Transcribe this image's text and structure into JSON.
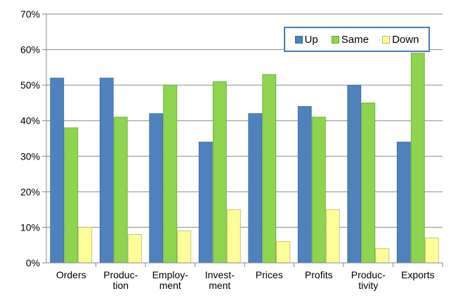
{
  "chart_data": {
    "type": "bar",
    "categories": [
      "Orders",
      "Produc-\ntion",
      "Employ-\nment",
      "Invest-\nment",
      "Prices",
      "Profits",
      "Produc-\ntivity",
      "Exports"
    ],
    "series": [
      {
        "name": "Up",
        "color": "#4f81bd",
        "values": [
          52,
          52,
          42,
          34,
          42,
          44,
          50,
          34
        ]
      },
      {
        "name": "Same",
        "color": "#8ed44f",
        "values": [
          38,
          41,
          50,
          51,
          53,
          41,
          45,
          59
        ]
      },
      {
        "name": "Down",
        "color": "#ffff99",
        "values": [
          10,
          8,
          9,
          15,
          6,
          15,
          4,
          7
        ]
      }
    ],
    "yticks": [
      "0%",
      "10%",
      "20%",
      "30%",
      "40%",
      "50%",
      "60%",
      "70%"
    ],
    "ylim": [
      0,
      70
    ],
    "grid": true,
    "legend_position": "top-right"
  }
}
